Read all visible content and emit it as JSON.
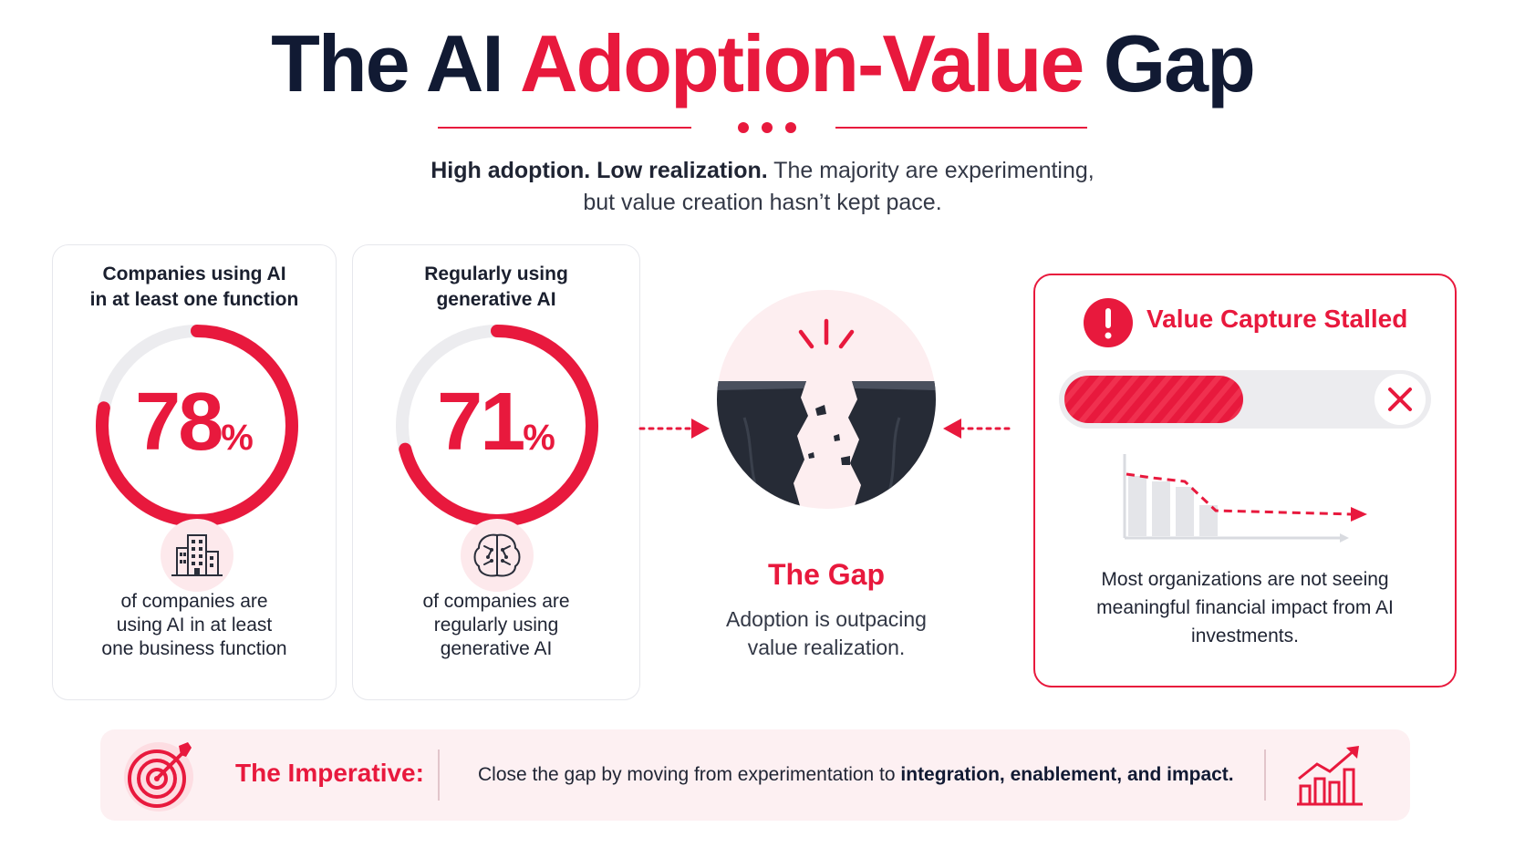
{
  "header": {
    "title_part1": "The AI ",
    "title_highlight": "Adoption-Value",
    "title_part2": " Gap",
    "subtitle_bold": "High adoption. Low realization.",
    "subtitle_line1_rest": " The majority are experimenting,",
    "subtitle_line2": "but value creation hasn’t kept pace."
  },
  "cards": [
    {
      "heading_line1": "Companies using AI",
      "heading_line2": "in at least one function",
      "value": 78,
      "value_text": "78",
      "unit": "%",
      "icon": "building-icon",
      "desc_line1": "of companies are",
      "desc_line2": "using AI in at least",
      "desc_line3": "one business function"
    },
    {
      "heading_line1": "Regularly using",
      "heading_line2": "generative AI",
      "value": 71,
      "value_text": "71",
      "unit": "%",
      "icon": "brain-icon",
      "desc_line1": "of companies are",
      "desc_line2": "regularly using",
      "desc_line3": "generative AI"
    }
  ],
  "gap": {
    "icon": "chasm-icon",
    "title": "The Gap",
    "desc_line1": "Adoption is outpacing",
    "desc_line2": "value realization."
  },
  "stall": {
    "icon": "alert-icon",
    "title": "Value Capture Stalled",
    "progress_fraction": 0.5,
    "close_icon": "close-icon",
    "chart_icon": "declining-chart-icon",
    "desc_line1": "Most organizations are not seeing",
    "desc_line2": "meaningful financial impact from AI",
    "desc_line3": "investments."
  },
  "imperative": {
    "icon": "target-icon",
    "label": "The Imperative:",
    "text_plain": "Close the gap by moving from experimentation to ",
    "text_bold": "integration, enablement, and impact.",
    "chart_icon": "growth-chart-icon"
  },
  "colors": {
    "accent": "#e8193d",
    "navy": "#111a33",
    "ring_track": "#ececef",
    "soft_pink": "#fde9ec"
  }
}
